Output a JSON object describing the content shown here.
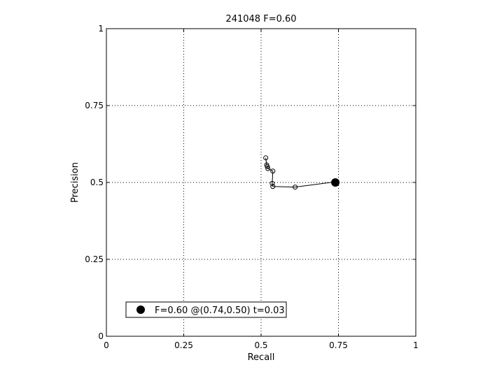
{
  "chart_data": {
    "type": "line",
    "title": "241048 F=0.60",
    "xlabel": "Recall",
    "ylabel": "Precision",
    "xlim": [
      0,
      1
    ],
    "ylim": [
      0,
      1
    ],
    "xticks": [
      0,
      0.25,
      0.5,
      0.75,
      1
    ],
    "xtick_labels": [
      "0",
      "0.25",
      "0.5",
      "0.75",
      "1"
    ],
    "yticks": [
      0,
      0.25,
      0.5,
      0.75,
      1
    ],
    "ytick_labels": [
      "0",
      "0.25",
      "0.5",
      "0.75",
      "1"
    ],
    "grid": true,
    "series": [
      {
        "x": [
          0.515,
          0.518,
          0.52,
          0.522,
          0.538,
          0.536,
          0.538,
          0.61,
          0.74
        ],
        "y": [
          0.58,
          0.557,
          0.552,
          0.545,
          0.537,
          0.497,
          0.487,
          0.485,
          0.502
        ],
        "marker": "open-circle"
      }
    ],
    "best_point": {
      "x": 0.74,
      "y": 0.5
    },
    "legend": {
      "position": "bottom-left",
      "entries": [
        "F=0.60 @(0.74,0.50) t=0.03"
      ]
    }
  }
}
